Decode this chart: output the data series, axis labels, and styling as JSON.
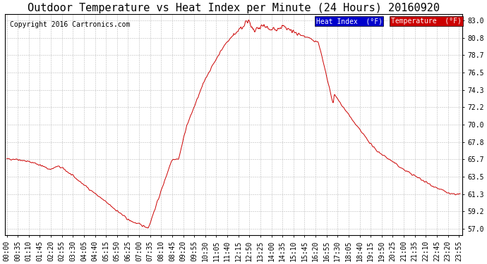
{
  "title": "Outdoor Temperature vs Heat Index per Minute (24 Hours) 20160920",
  "copyright": "Copyright 2016 Cartronics.com",
  "legend_heat_label": "Heat Index  (°F)",
  "legend_temp_label": "Temperature  (°F)",
  "legend_heat_color": "#0000cc",
  "legend_temp_color": "#cc0000",
  "line_color": "#cc0000",
  "background_color": "#ffffff",
  "grid_color": "#bbbbbb",
  "yticks": [
    57.0,
    59.2,
    61.3,
    63.5,
    65.7,
    67.8,
    70.0,
    72.2,
    74.3,
    76.5,
    78.7,
    80.8,
    83.0
  ],
  "ylim": [
    56.2,
    83.8
  ],
  "title_fontsize": 11,
  "tick_fontsize": 7,
  "copyright_fontsize": 7
}
